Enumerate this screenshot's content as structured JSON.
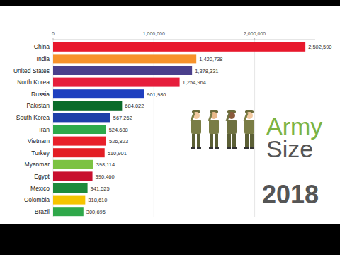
{
  "chart_data": {
    "type": "bar",
    "orientation": "horizontal",
    "title": "Army Size",
    "subtitle": "2018",
    "categories": [
      "China",
      "India",
      "United States",
      "North Korea",
      "Russia",
      "Pakistan",
      "South Korea",
      "Iran",
      "Vietnam",
      "Turkey",
      "Myanmar",
      "Egypt",
      "Mexico",
      "Colombia",
      "Brazil"
    ],
    "values": [
      2502590,
      1420738,
      1378331,
      1254964,
      901986,
      684022,
      567262,
      524688,
      526823,
      510901,
      398114,
      390460,
      341525,
      318610,
      300695
    ],
    "value_labels": [
      "2,502,590",
      "1,420,738",
      "1,378,331",
      "1,254,964",
      "901,986",
      "684,022",
      "567,262",
      "524,688",
      "526,823",
      "510,901",
      "398,114",
      "390,460",
      "341,525",
      "318,610",
      "300,695"
    ],
    "colors": [
      "#e8182c",
      "#f7922a",
      "#4a3f8c",
      "#e61e3c",
      "#1e3fbf",
      "#0a6b2a",
      "#1e3fa8",
      "#2eaa4a",
      "#e8202a",
      "#e31e24",
      "#7cc242",
      "#c8102e",
      "#1e8a3c",
      "#f5c400",
      "#2fa84a"
    ],
    "xlim": [
      0,
      2600000
    ],
    "xticks": [
      0,
      {
        "value": 1000000,
        "label": "1,000,000"
      },
      {
        "value": 2000000,
        "label": "2,000,000"
      }
    ],
    "grid": true,
    "data_labels": true
  }
}
